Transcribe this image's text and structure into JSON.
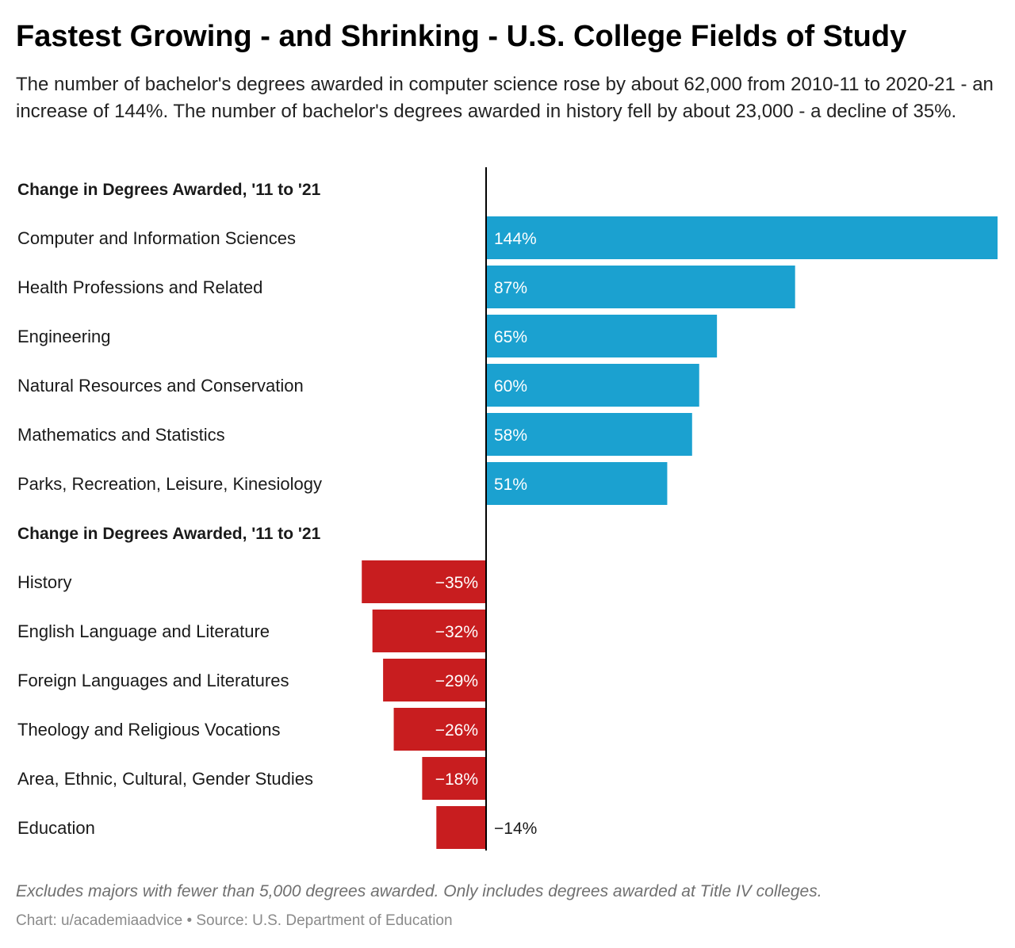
{
  "title": "Fastest Growing - and Shrinking - U.S. College Fields of Study",
  "subtitle": "The number of bachelor's degrees awarded in computer science rose by about 62,000 from 2010-11 to 2020-21 - an increase of 144%. The number of bachelor's degrees awarded in history fell by about 23,000 - a decline of 35%.",
  "note": "Excludes majors with fewer than 5,000 degrees awarded. Only includes degrees awarded at Title IV colleges.",
  "credit": "Chart: u/academiaadvice • Source: U.S. Department of Education",
  "chart_data": {
    "type": "bar",
    "orientation": "horizontal",
    "unit": "%",
    "colors": {
      "positive": "#1ba1d0",
      "negative": "#c81d1f",
      "axis": "#000000"
    },
    "xlim": [
      -35,
      144
    ],
    "grid": false,
    "groups": [
      {
        "header": "Change in Degrees Awarded,  '11 to '21",
        "categories": [
          "Computer and Information Sciences",
          "Health Professions and Related",
          "Engineering",
          "Natural Resources and Conservation",
          "Mathematics and Statistics",
          "Parks, Recreation, Leisure, Kinesiology"
        ],
        "values": [
          144,
          87,
          65,
          60,
          58,
          51
        ],
        "labels": [
          "144%",
          "87%",
          "65%",
          "60%",
          "58%",
          "51%"
        ]
      },
      {
        "header": "Change in Degrees Awarded,  '11 to '21",
        "categories": [
          "History",
          "English Language and Literature",
          "Foreign Languages and Literatures",
          "Theology and Religious Vocations",
          "Area, Ethnic, Cultural, Gender Studies",
          "Education"
        ],
        "values": [
          -35,
          -32,
          -29,
          -26,
          -18,
          -14
        ],
        "labels": [
          "−35%",
          "−32%",
          "−29%",
          "−26%",
          "−18%",
          "−14%"
        ]
      }
    ]
  }
}
